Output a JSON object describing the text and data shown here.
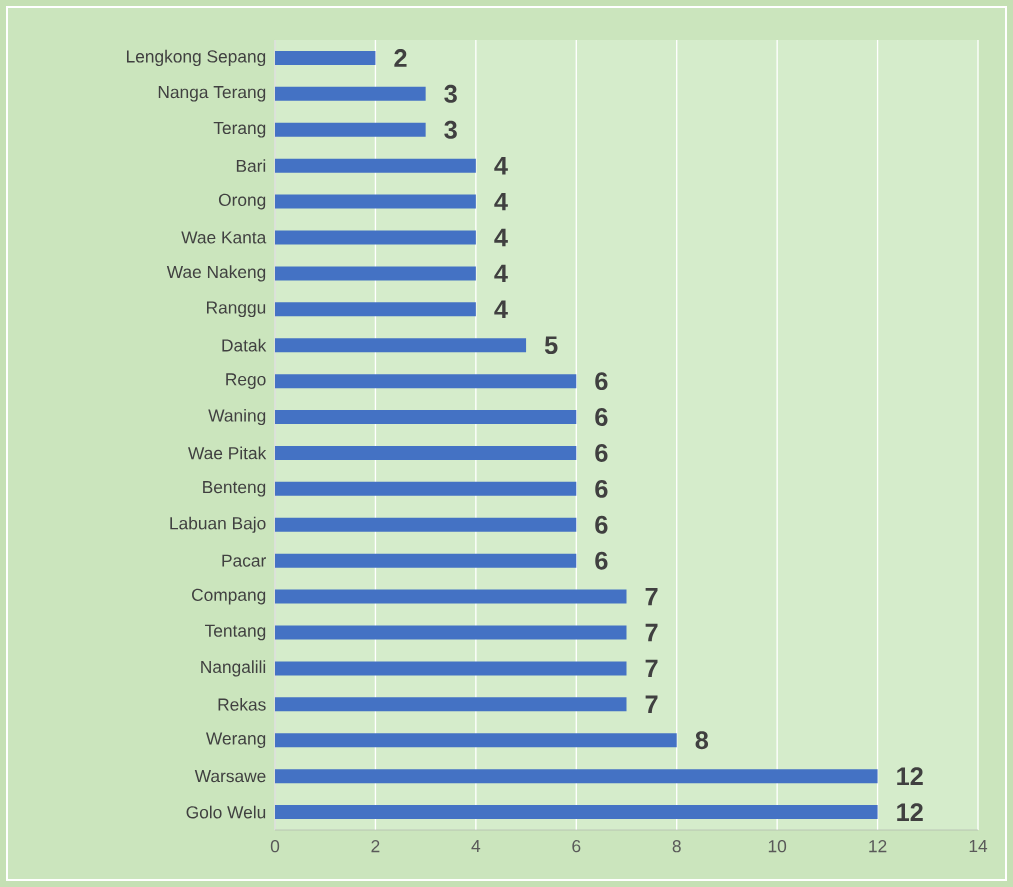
{
  "chart_data": {
    "type": "bar",
    "orientation": "horizontal",
    "categories": [
      "Lengkong Sepang",
      "Nanga Terang",
      "Terang",
      "Bari",
      "Orong",
      "Wae Kanta",
      "Wae Nakeng",
      "Ranggu",
      "Datak",
      "Rego",
      "Waning",
      "Wae Pitak",
      "Benteng",
      "Labuan Bajo",
      "Pacar",
      "Compang",
      "Tentang",
      "Nangalili",
      "Rekas",
      "Werang",
      "Warsawe",
      "Golo Welu"
    ],
    "values": [
      2,
      3,
      3,
      4,
      4,
      4,
      4,
      4,
      5,
      6,
      6,
      6,
      6,
      6,
      6,
      7,
      7,
      7,
      7,
      8,
      12,
      12
    ],
    "color": "#4472c4",
    "xlim": [
      0,
      14
    ],
    "xticks": [
      0,
      2,
      4,
      6,
      8,
      10,
      12,
      14
    ],
    "grid": "x",
    "data_labels": true
  }
}
